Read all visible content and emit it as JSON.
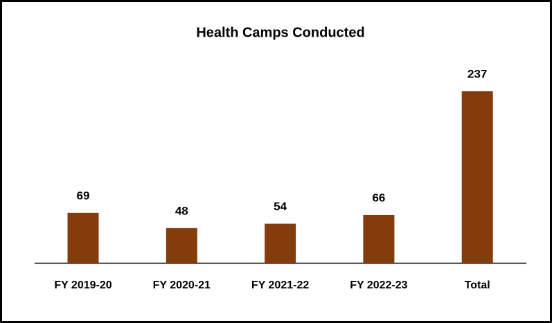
{
  "chart_data": {
    "type": "bar",
    "title": "Health Camps Conducted",
    "categories": [
      "FY 2019-20",
      "FY 2020-21",
      "FY 2021-22",
      "FY 2022-23",
      "Total"
    ],
    "values": [
      69,
      48,
      54,
      66,
      237
    ],
    "color": "#843c0c"
  }
}
